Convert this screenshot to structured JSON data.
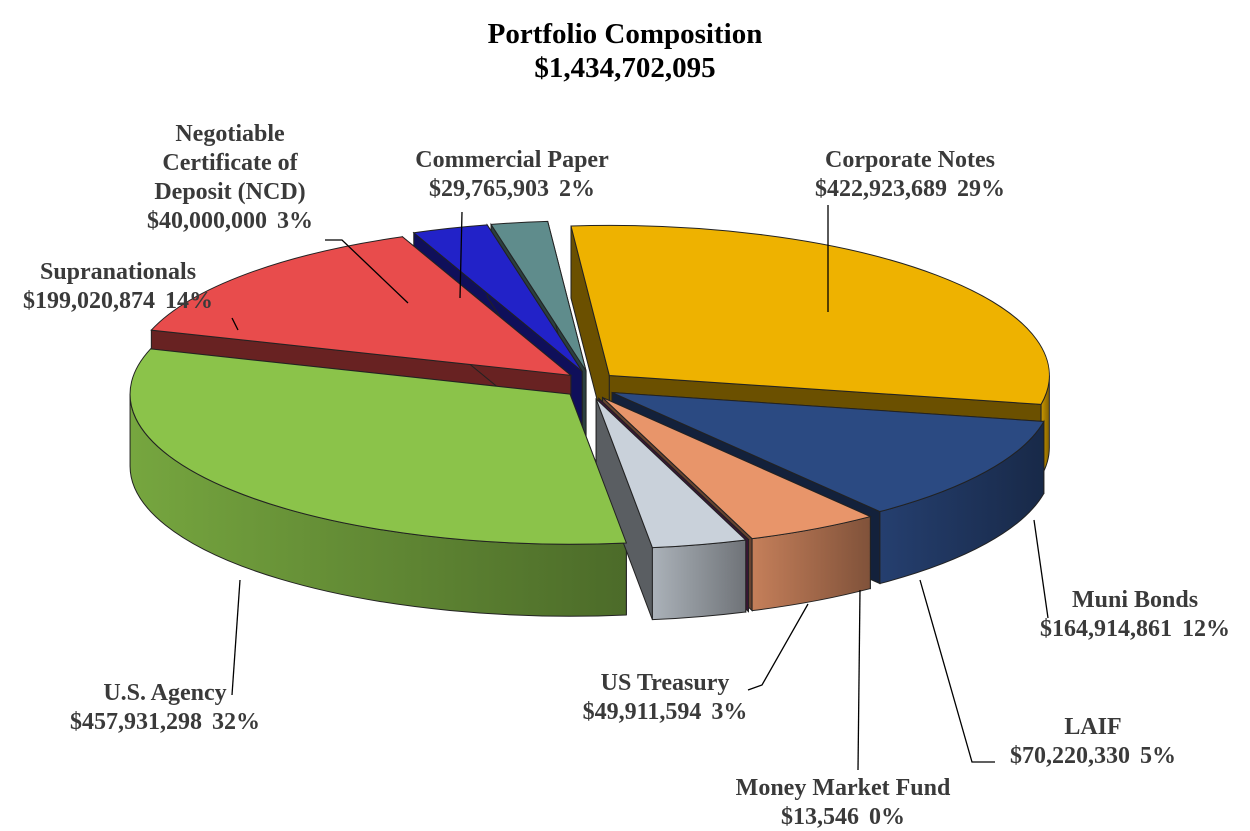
{
  "chart_data": {
    "type": "pie3d",
    "title": "Portfolio Composition",
    "subtitle": "$1,434,702,095",
    "categories": [
      "Corporate Notes",
      "Muni Bonds",
      "LAIF",
      "Money Market Fund",
      "US Treasury",
      "U.S. Agency",
      "Supranationals",
      "Negotiable Certificate of Deposit (NCD)",
      "Commercial Paper"
    ],
    "values": [
      422923689,
      164914861,
      70220330,
      13546,
      49911594,
      457931298,
      199020874,
      40000000,
      29765903
    ],
    "value_labels": [
      "$422,923,689",
      "$164,914,861",
      "$70,220,330",
      "$13,546",
      "$49,911,594",
      "$457,931,298",
      "$199,020,874",
      "$40,000,000",
      "$29,765,903"
    ],
    "percent_labels": [
      "29%",
      "12%",
      "5%",
      "0%",
      "3%",
      "32%",
      "14%",
      "3%",
      "2%"
    ],
    "colors": [
      "#eeb200",
      "#2b4a82",
      "#e8956a",
      "#8a2a7a",
      "#c9d1da",
      "#8bc34a",
      "#e84c4c",
      "#2222c8",
      "#5f8c8c"
    ]
  }
}
